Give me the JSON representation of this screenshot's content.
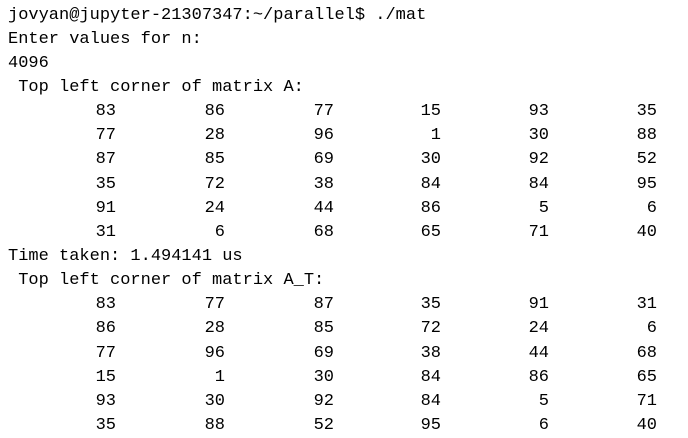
{
  "terminal": {
    "prompt": "jovyan@jupyter-21307347:~/parallel$ ./mat",
    "input_prompt": "Enter values for n:",
    "input_value": "4096",
    "matrix_a_heading": " Top left corner of matrix A:",
    "matrix_a": [
      [
        "83",
        "86",
        "77",
        "15",
        "93",
        "35"
      ],
      [
        "77",
        "28",
        "96",
        "1",
        "30",
        "88"
      ],
      [
        "87",
        "85",
        "69",
        "30",
        "92",
        "52"
      ],
      [
        "35",
        "72",
        "38",
        "84",
        "84",
        "95"
      ],
      [
        "91",
        "24",
        "44",
        "86",
        "5",
        "6"
      ],
      [
        "31",
        "6",
        "68",
        "65",
        "71",
        "40"
      ]
    ],
    "time_taken": "Time taken: 1.494141 us",
    "matrix_at_heading": " Top left corner of matrix A_T:",
    "matrix_at": [
      [
        "83",
        "77",
        "87",
        "35",
        "91",
        "31"
      ],
      [
        "86",
        "28",
        "85",
        "72",
        "24",
        "6"
      ],
      [
        "77",
        "96",
        "69",
        "38",
        "44",
        "68"
      ],
      [
        "15",
        "1",
        "30",
        "84",
        "86",
        "65"
      ],
      [
        "93",
        "30",
        "92",
        "84",
        "5",
        "71"
      ],
      [
        "35",
        "88",
        "52",
        "95",
        "6",
        "40"
      ]
    ]
  }
}
